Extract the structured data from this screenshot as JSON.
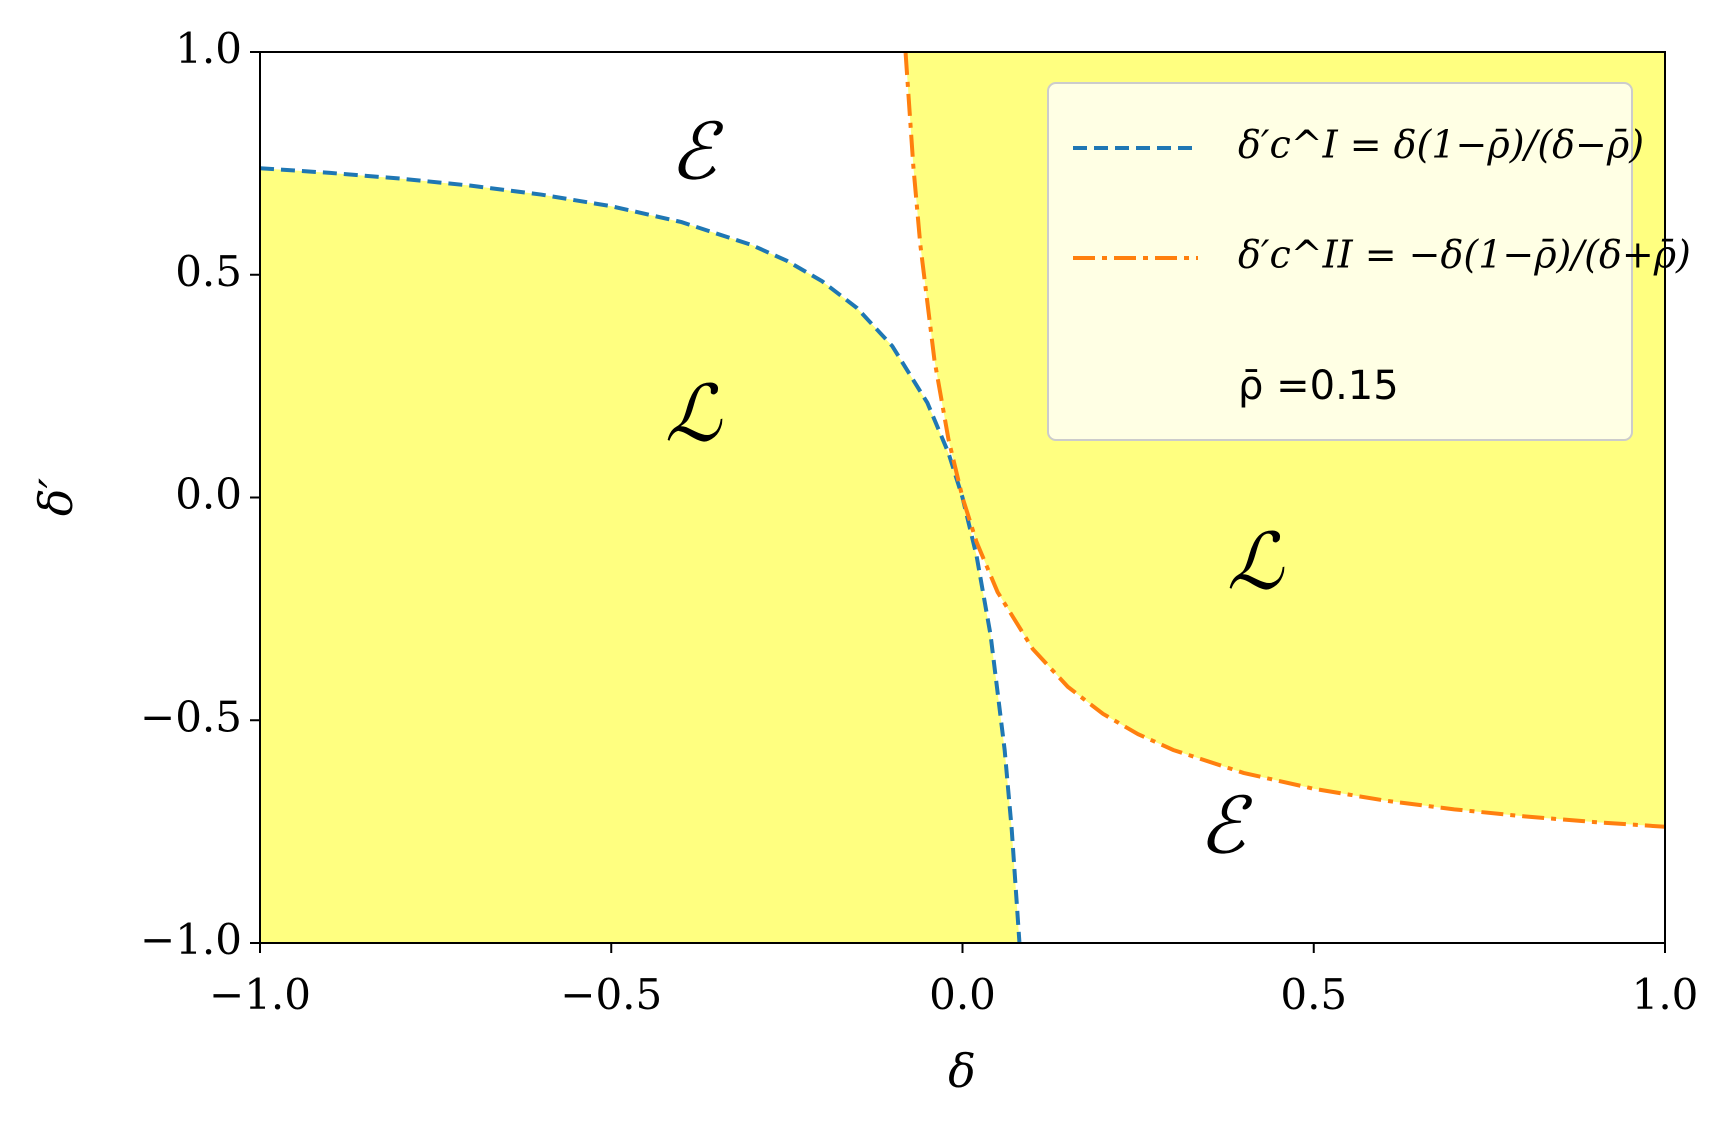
{
  "chart_data": {
    "type": "line",
    "xlabel": "δ",
    "ylabel": "δ′",
    "xlim": [
      -1,
      1
    ],
    "ylim": [
      -1,
      1
    ],
    "xticks": [
      {
        "value": -1,
        "label": "−1.0"
      },
      {
        "value": -0.5,
        "label": "−0.5"
      },
      {
        "value": 0,
        "label": "0.0"
      },
      0.5,
      {
        "value": 1,
        "label": "1.0"
      }
    ],
    "yticks": [
      {
        "value": -1,
        "label": "−1.0"
      },
      {
        "value": -0.5,
        "label": "−0.5"
      },
      {
        "value": 0,
        "label": "0.0"
      },
      0.5,
      {
        "value": 1,
        "label": "1.0"
      }
    ],
    "fill_color": "#ffff80",
    "series": [
      {
        "name": "δ′c^I = δ(1−ρ̄)/(δ−ρ̄)",
        "color": "#1f77b4",
        "dash": "dashed",
        "fill": "below",
        "x": [
          -1,
          -0.9,
          -0.8,
          -0.7,
          -0.6,
          -0.5,
          -0.4,
          -0.3,
          -0.25,
          -0.2,
          -0.15,
          -0.1,
          -0.05,
          -0.02,
          0,
          0.02,
          0.04,
          0.06,
          0.07,
          0.081
        ],
        "values": [
          0.7391,
          0.7286,
          0.7158,
          0.7,
          0.68,
          0.6538,
          0.6182,
          0.5667,
          0.5313,
          0.4857,
          0.425,
          0.34,
          0.2125,
          0.1,
          0,
          -0.1308,
          -0.3091,
          -0.5667,
          -0.7438,
          -0.9978
        ]
      },
      {
        "name": "δ′c^II = −δ(1−ρ̄)/(δ+ρ̄)",
        "color": "#ff7f0e",
        "dash": "dashdot",
        "fill": "above",
        "x": [
          -0.081,
          -0.07,
          -0.06,
          -0.04,
          -0.02,
          0,
          0.02,
          0.05,
          0.1,
          0.15,
          0.2,
          0.25,
          0.3,
          0.4,
          0.5,
          0.6,
          0.7,
          0.8,
          0.9,
          1
        ],
        "values": [
          0.9978,
          0.7438,
          0.5667,
          0.3091,
          0.1308,
          0,
          -0.1,
          -0.2125,
          -0.34,
          -0.425,
          -0.4857,
          -0.5313,
          -0.5667,
          -0.6182,
          -0.6538,
          -0.68,
          -0.7,
          -0.7158,
          -0.7286,
          -0.7391
        ]
      }
    ],
    "legend_note": "ρ̄ =0.15",
    "legend_position": "upper right",
    "annotations": [
      "ℰ",
      "ℒ",
      "ℒ",
      "ℰ"
    ]
  }
}
